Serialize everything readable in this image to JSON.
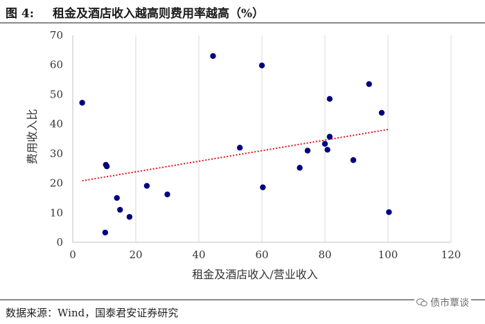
{
  "figure": {
    "label": "图 4:",
    "title": "租金及酒店收入越高则费用率越高（%）"
  },
  "source": "数据来源：Wind，国泰君安证券研究",
  "watermark": "债市覃谈",
  "colors": {
    "points": "#000080",
    "trendline": "#e8101a",
    "grid": "#d9d9d9"
  },
  "chart_data": {
    "type": "scatter",
    "title": "",
    "xlabel": "租金及酒店收入/营业收入",
    "ylabel": "费用收入比",
    "xlim": [
      0,
      120
    ],
    "ylim": [
      0,
      70
    ],
    "xticks": [
      0,
      20,
      40,
      60,
      80,
      100,
      120
    ],
    "yticks": [
      0,
      10,
      20,
      30,
      40,
      50,
      60,
      70
    ],
    "grid": "vertical",
    "legend": "none",
    "points": [
      {
        "x": 3,
        "y": 47.2
      },
      {
        "x": 10.5,
        "y": 26.2
      },
      {
        "x": 10.8,
        "y": 25.7
      },
      {
        "x": 10.3,
        "y": 3.3
      },
      {
        "x": 14,
        "y": 15
      },
      {
        "x": 15,
        "y": 11
      },
      {
        "x": 18,
        "y": 8.6
      },
      {
        "x": 23.5,
        "y": 19.1
      },
      {
        "x": 30,
        "y": 16.2
      },
      {
        "x": 44.5,
        "y": 63
      },
      {
        "x": 53,
        "y": 32
      },
      {
        "x": 60,
        "y": 59.8
      },
      {
        "x": 60.3,
        "y": 18.6
      },
      {
        "x": 72,
        "y": 25.2
      },
      {
        "x": 74.5,
        "y": 31
      },
      {
        "x": 80,
        "y": 33.3
      },
      {
        "x": 80.8,
        "y": 31.3
      },
      {
        "x": 81.5,
        "y": 35.7
      },
      {
        "x": 81.5,
        "y": 48.5
      },
      {
        "x": 89,
        "y": 27.8
      },
      {
        "x": 94,
        "y": 53.5
      },
      {
        "x": 98,
        "y": 43.8
      },
      {
        "x": 100.3,
        "y": 10.2
      }
    ],
    "trendline": {
      "type": "linear",
      "style": "dotted",
      "x": [
        3,
        100.3
      ],
      "y": [
        20.8,
        38.2
      ]
    }
  }
}
